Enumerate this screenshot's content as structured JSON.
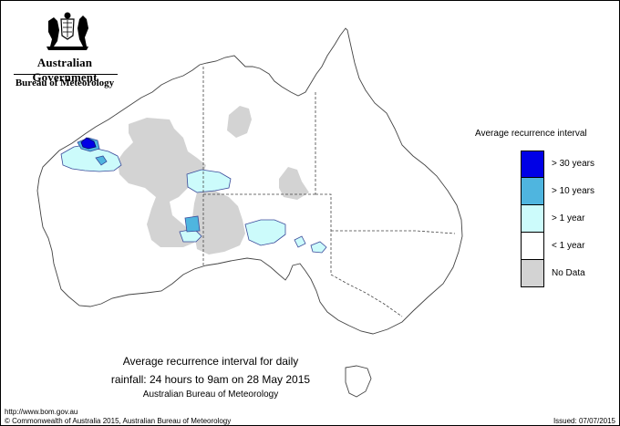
{
  "header": {
    "government_name": "Australian Government",
    "bureau_name": "Bureau of Meteorology"
  },
  "legend": {
    "title": "Average recurrence interval",
    "items": [
      {
        "label": "> 30 years",
        "color": "#0000e6"
      },
      {
        "label": "> 10 years",
        "color": "#4fb5df"
      },
      {
        "label": "> 1 year",
        "color": "#ccfbfb"
      },
      {
        "label": "< 1 year",
        "color": "#ffffff"
      },
      {
        "label": "No Data",
        "color": "#d3d3d3"
      }
    ]
  },
  "caption": {
    "line1": "Average recurrence interval for daily",
    "line2": "rainfall: 24 hours to 9am on 28 May 2015",
    "line3": "Australian Bureau of Meteorology"
  },
  "footer": {
    "url": "http://www.bom.gov.au",
    "copyright": "© Commonwealth of Australia 2015, Australian Bureau of Meteorology",
    "issued": "Issued: 07/07/2015"
  },
  "colors": {
    "no_data": "#d3d3d3",
    "gt_1_year": "#ccfbfb",
    "gt_10_years": "#4fb5df",
    "gt_30_years": "#0000e6",
    "border": "#444444"
  }
}
